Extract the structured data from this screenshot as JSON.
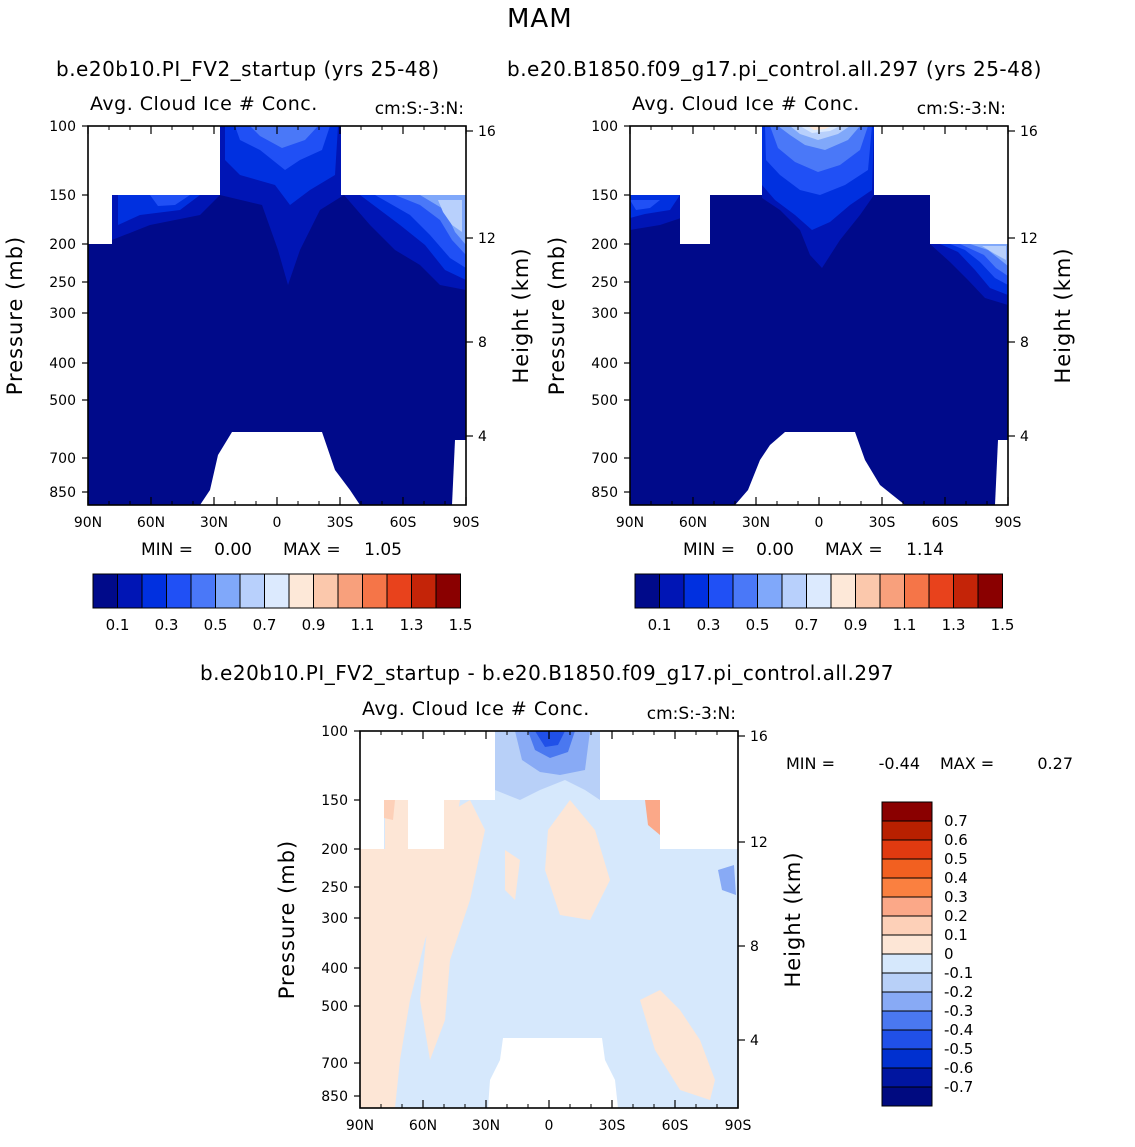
{
  "season": "MAM",
  "chart_data": [
    {
      "type": "heatmap",
      "title": "b.e20b10.PI_FV2_startup (yrs 25-48)",
      "variable": "Avg. Cloud Ice # Conc.",
      "units": "cm:S:-3:N:",
      "xlabel": "",
      "ylabel": "Pressure (mb)",
      "ylabel_right": "Height (km)",
      "x_ticks": [
        "90N",
        "60N",
        "30N",
        "0",
        "30S",
        "60S",
        "90S"
      ],
      "y_ticks": [
        "100",
        "150",
        "200",
        "250",
        "300",
        "400",
        "500",
        "700",
        "850"
      ],
      "height_ticks": [
        "16",
        "12",
        "8",
        "4"
      ],
      "min_label": "MIN =",
      "min": "0.00",
      "max_label": "MAX =",
      "max": "1.05",
      "levels": [
        "0.1",
        "0.3",
        "0.5",
        "0.7",
        "0.9",
        "1.1",
        "1.3",
        "1.5"
      ]
    },
    {
      "type": "heatmap",
      "title": "b.e20.B1850.f09_g17.pi_control.all.297 (yrs 25-48)",
      "variable": "Avg. Cloud Ice # Conc.",
      "units": "cm:S:-3:N:",
      "xlabel": "",
      "ylabel": "Pressure (mb)",
      "ylabel_right": "Height (km)",
      "x_ticks": [
        "90N",
        "60N",
        "30N",
        "0",
        "30S",
        "60S",
        "90S"
      ],
      "y_ticks": [
        "100",
        "150",
        "200",
        "250",
        "300",
        "400",
        "500",
        "700",
        "850"
      ],
      "height_ticks": [
        "16",
        "12",
        "8",
        "4"
      ],
      "min_label": "MIN =",
      "min": "0.00",
      "max_label": "MAX =",
      "max": "1.14",
      "levels": [
        "0.1",
        "0.3",
        "0.5",
        "0.7",
        "0.9",
        "1.1",
        "1.3",
        "1.5"
      ]
    },
    {
      "type": "heatmap",
      "title": "b.e20b10.PI_FV2_startup - b.e20.B1850.f09_g17.pi_control.all.297",
      "variable": "Avg. Cloud Ice # Conc.",
      "units": "cm:S:-3:N:",
      "xlabel": "",
      "ylabel": "Pressure (mb)",
      "ylabel_right": "Height (km)",
      "x_ticks": [
        "90N",
        "60N",
        "30N",
        "0",
        "30S",
        "60S",
        "90S"
      ],
      "y_ticks": [
        "100",
        "150",
        "200",
        "250",
        "300",
        "400",
        "500",
        "700",
        "850"
      ],
      "height_ticks": [
        "16",
        "12",
        "8",
        "4"
      ],
      "min_label": "MIN =",
      "min": "-0.44",
      "max_label": "MAX =",
      "max": "0.27",
      "levels": [
        "0.7",
        "0.6",
        "0.5",
        "0.4",
        "0.3",
        "0.2",
        "0.1",
        "0",
        "-0.1",
        "-0.2",
        "-0.3",
        "-0.4",
        "-0.5",
        "-0.6",
        "-0.7"
      ]
    }
  ],
  "colors": {
    "seq": [
      "#000a8a",
      "#0015b5",
      "#0030e0",
      "#2050f5",
      "#4a78f8",
      "#80a8fa",
      "#b8d0fc",
      "#dceafe",
      "#fde8d8",
      "#fbc8ac",
      "#f8a07c",
      "#f57548",
      "#e8421c",
      "#c42408",
      "#8a0000"
    ],
    "diff": [
      "#8a0000",
      "#b82000",
      "#e03a10",
      "#f26020",
      "#fa8040",
      "#fba888",
      "#fdd0b8",
      "#fde6d6",
      "#d6e8fc",
      "#b8d0f8",
      "#88aaf5",
      "#4a78f0",
      "#2050e8",
      "#0030d0",
      "#0015a0",
      "#000a80"
    ]
  }
}
